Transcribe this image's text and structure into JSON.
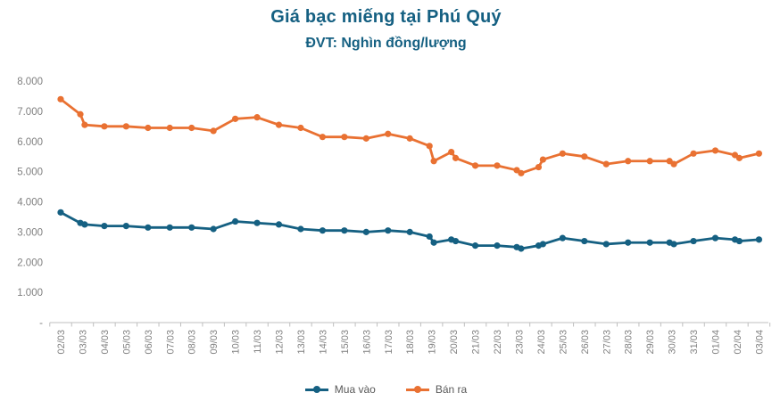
{
  "chart_data": {
    "type": "line",
    "title": "Giá bạc miếng tại Phú Quý",
    "subtitle": "ĐVT: Nghìn đồng/lượng",
    "xlabel": "",
    "ylabel": "",
    "ylim": [
      0,
      8000
    ],
    "grid": false,
    "legend_position": "bottom-center",
    "axis_color": "#BFBFBF",
    "tick_label_color": "#808080",
    "categories": [
      "02/03",
      "03/03",
      "04/03",
      "05/03",
      "06/03",
      "07/03",
      "08/03",
      "09/03",
      "10/03",
      "11/03",
      "12/03",
      "13/03",
      "14/03",
      "15/03",
      "16/03",
      "17/03",
      "18/03",
      "19/03",
      "20/03",
      "21/03",
      "22/03",
      "23/03",
      "24/03",
      "25/03",
      "26/03",
      "27/03",
      "28/03",
      "29/03",
      "30/03",
      "31/03",
      "01/04",
      "02/04",
      "03/04"
    ],
    "yticks": [
      {
        "label": "8.000",
        "v": 8000
      },
      {
        "label": "7.000",
        "v": 7000
      },
      {
        "label": "6.000",
        "v": 6000
      },
      {
        "label": "5.000",
        "v": 5000
      },
      {
        "label": "4.000",
        "v": 4000
      },
      {
        "label": "3.000",
        "v": 3000
      },
      {
        "label": "2.000",
        "v": 2000
      },
      {
        "label": "1.000",
        "v": 1000
      },
      {
        "label": "-",
        "v": 0
      }
    ],
    "series": [
      {
        "name": "Mua vào",
        "color": "#156082",
        "points": [
          {
            "x": 0,
            "v": 3650
          },
          {
            "x": 0.9,
            "v": 3300
          },
          {
            "x": 1.1,
            "v": 3250
          },
          {
            "x": 2,
            "v": 3200
          },
          {
            "x": 3,
            "v": 3200
          },
          {
            "x": 4,
            "v": 3150
          },
          {
            "x": 5,
            "v": 3150
          },
          {
            "x": 6,
            "v": 3150
          },
          {
            "x": 7,
            "v": 3100
          },
          {
            "x": 8,
            "v": 3350
          },
          {
            "x": 9,
            "v": 3300
          },
          {
            "x": 10,
            "v": 3250
          },
          {
            "x": 11,
            "v": 3100
          },
          {
            "x": 12,
            "v": 3050
          },
          {
            "x": 13,
            "v": 3050
          },
          {
            "x": 14,
            "v": 3000
          },
          {
            "x": 15,
            "v": 3050
          },
          {
            "x": 16,
            "v": 3000
          },
          {
            "x": 16.9,
            "v": 2850
          },
          {
            "x": 17.1,
            "v": 2650
          },
          {
            "x": 17.9,
            "v": 2750
          },
          {
            "x": 18.1,
            "v": 2700
          },
          {
            "x": 19,
            "v": 2550
          },
          {
            "x": 20,
            "v": 2550
          },
          {
            "x": 20.9,
            "v": 2500
          },
          {
            "x": 21.1,
            "v": 2450
          },
          {
            "x": 21.9,
            "v": 2550
          },
          {
            "x": 22.1,
            "v": 2600
          },
          {
            "x": 23,
            "v": 2800
          },
          {
            "x": 24,
            "v": 2700
          },
          {
            "x": 25,
            "v": 2600
          },
          {
            "x": 26,
            "v": 2650
          },
          {
            "x": 27,
            "v": 2650
          },
          {
            "x": 27.9,
            "v": 2650
          },
          {
            "x": 28.1,
            "v": 2600
          },
          {
            "x": 29,
            "v": 2700
          },
          {
            "x": 30,
            "v": 2800
          },
          {
            "x": 30.9,
            "v": 2750
          },
          {
            "x": 31.1,
            "v": 2700
          },
          {
            "x": 32,
            "v": 2750
          }
        ]
      },
      {
        "name": "Bán ra",
        "color": "#E97132",
        "points": [
          {
            "x": 0,
            "v": 7400
          },
          {
            "x": 0.9,
            "v": 6900
          },
          {
            "x": 1.1,
            "v": 6550
          },
          {
            "x": 2,
            "v": 6500
          },
          {
            "x": 3,
            "v": 6500
          },
          {
            "x": 4,
            "v": 6450
          },
          {
            "x": 5,
            "v": 6450
          },
          {
            "x": 6,
            "v": 6450
          },
          {
            "x": 7,
            "v": 6350
          },
          {
            "x": 8,
            "v": 6750
          },
          {
            "x": 9,
            "v": 6800
          },
          {
            "x": 10,
            "v": 6550
          },
          {
            "x": 11,
            "v": 6450
          },
          {
            "x": 12,
            "v": 6150
          },
          {
            "x": 13,
            "v": 6150
          },
          {
            "x": 14,
            "v": 6100
          },
          {
            "x": 15,
            "v": 6250
          },
          {
            "x": 16,
            "v": 6100
          },
          {
            "x": 16.9,
            "v": 5850
          },
          {
            "x": 17.1,
            "v": 5350
          },
          {
            "x": 17.9,
            "v": 5650
          },
          {
            "x": 18.1,
            "v": 5450
          },
          {
            "x": 19,
            "v": 5200
          },
          {
            "x": 20,
            "v": 5200
          },
          {
            "x": 20.9,
            "v": 5050
          },
          {
            "x": 21.1,
            "v": 4950
          },
          {
            "x": 21.9,
            "v": 5150
          },
          {
            "x": 22.1,
            "v": 5400
          },
          {
            "x": 23,
            "v": 5600
          },
          {
            "x": 24,
            "v": 5500
          },
          {
            "x": 25,
            "v": 5250
          },
          {
            "x": 26,
            "v": 5350
          },
          {
            "x": 27,
            "v": 5350
          },
          {
            "x": 27.9,
            "v": 5350
          },
          {
            "x": 28.1,
            "v": 5250
          },
          {
            "x": 29,
            "v": 5600
          },
          {
            "x": 30,
            "v": 5700
          },
          {
            "x": 30.9,
            "v": 5550
          },
          {
            "x": 31.1,
            "v": 5450
          },
          {
            "x": 32,
            "v": 5600
          }
        ]
      }
    ]
  }
}
